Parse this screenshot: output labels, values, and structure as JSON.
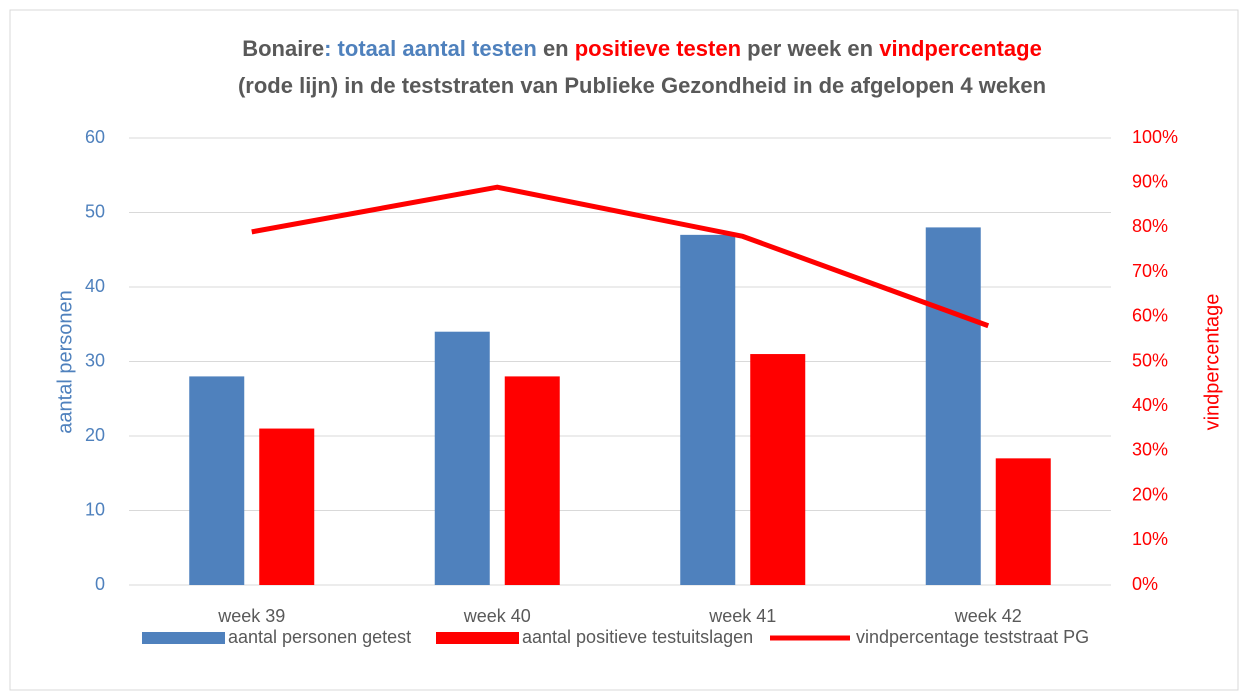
{
  "chart_data": {
    "type": "bar_line",
    "title_parts": [
      {
        "text": "Bonaire",
        "color": "#595959"
      },
      {
        "text": ": totaal aantal testen",
        "color": "#4f81bd"
      },
      {
        "text": " en ",
        "color": "#595959"
      },
      {
        "text": "positieve testen",
        "color": "#ff0000"
      },
      {
        "text": " per week en ",
        "color": "#595959"
      },
      {
        "text": "vindpercentage",
        "color": "#ff0000"
      }
    ],
    "title_line2": "(rode lijn) in de teststraten van Publieke Gezondheid in de afgelopen 4 weken",
    "y_label": "aantal personen",
    "y2_label": "vindpercentage",
    "categories": [
      "week 39",
      "week 40",
      "week 41",
      "week 42"
    ],
    "series": [
      {
        "name": "aantal personen getest",
        "color": "#4f81bd",
        "kind": "bar",
        "values": [
          28,
          34,
          47,
          48
        ]
      },
      {
        "name": "aantal positieve testuitslagen",
        "color": "#ff0000",
        "kind": "bar",
        "values": [
          21,
          28,
          31,
          17
        ]
      },
      {
        "name": "vindpercentage teststraat PG",
        "color": "#ff0000",
        "kind": "line",
        "axis": "y2",
        "values": [
          79,
          89,
          78,
          58
        ]
      }
    ],
    "ylim": [
      0,
      60
    ],
    "yticks": [
      0,
      10,
      20,
      30,
      40,
      50,
      60
    ],
    "y2lim": [
      0,
      100
    ],
    "y2ticks": [
      {
        "value": 0,
        "label": "0%"
      },
      {
        "value": 10,
        "label": "10%"
      },
      {
        "value": 20,
        "label": "20%"
      },
      {
        "value": 30,
        "label": "30%"
      },
      {
        "value": 40,
        "label": "40%"
      },
      {
        "value": 50,
        "label": "50%"
      },
      {
        "value": 60,
        "label": "60%"
      },
      {
        "value": 70,
        "label": "70%"
      },
      {
        "value": 80,
        "label": "80%"
      },
      {
        "value": 90,
        "label": "90%"
      },
      {
        "value": 100,
        "label": "100%"
      }
    ],
    "grid": true,
    "legend": "bottom"
  }
}
